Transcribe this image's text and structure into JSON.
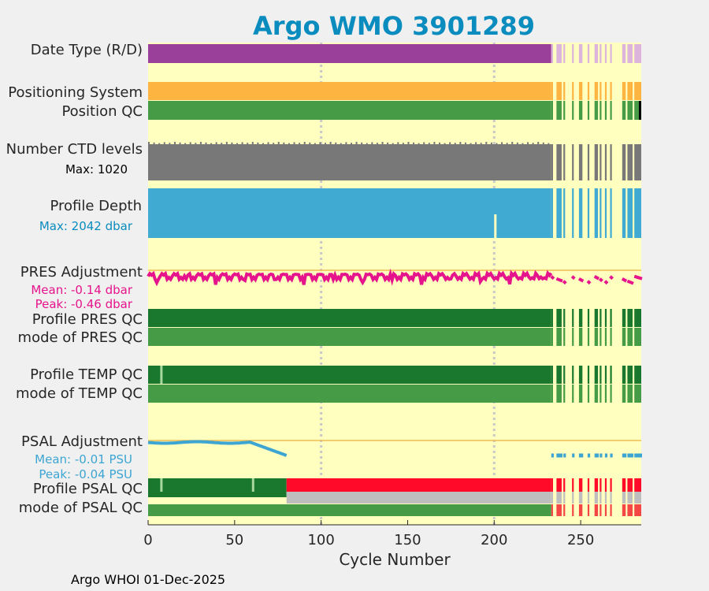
{
  "chart_data": {
    "type": "bar",
    "title": "Argo WMO 3901289",
    "xlabel": "Cycle Number",
    "xlim": [
      0,
      285
    ],
    "xticks": [
      0,
      50,
      100,
      150,
      200,
      250
    ],
    "xtick_labels": [
      "0",
      "50",
      "100",
      "150",
      "200",
      "250"
    ],
    "footer": "Argo WHOI 01-Dec-2025",
    "rows": {
      "date_type": "Date Type (R/D)",
      "positioning": "Positioning System",
      "position_qc": "Position QC",
      "ctd_levels": "Number CTD levels",
      "ctd_max": "Max: 1020",
      "profile_depth": "Profile Depth",
      "depth_max": "Max: 2042 dbar",
      "pres_adj": "PRES Adjustment",
      "pres_mean": "Mean: -0.14 dbar",
      "pres_peak": "Peak: -0.46 dbar",
      "profile_pres_qc": "Profile PRES QC",
      "mode_pres_qc": "mode of PRES QC",
      "profile_temp_qc": "Profile TEMP QC",
      "mode_temp_qc": "mode of TEMP QC",
      "psal_adj": "PSAL Adjustment",
      "psal_mean": "Mean: -0.01 PSU",
      "psal_peak": "Peak: -0.04 PSU",
      "profile_psal_qc": "Profile PSAL QC",
      "mode_psal_qc": "mode of PSAL QC"
    },
    "cycles_present_after_233": [
      [
        233,
        234
      ],
      [
        236,
        239
      ],
      [
        240,
        241
      ],
      [
        245,
        246
      ],
      [
        249,
        251
      ],
      [
        254,
        255
      ],
      [
        258,
        260
      ],
      [
        261,
        262
      ],
      [
        264,
        265
      ],
      [
        267,
        268
      ],
      [
        274,
        276
      ],
      [
        277,
        280
      ],
      [
        281,
        285
      ]
    ],
    "data_type_realtime_from_cycle": 233,
    "psal_qc_bad_from_cycle": 80,
    "ctd_levels_max": 1020,
    "profile_depth_max_dbar": 2042,
    "pres_adjustment_mean_dbar": -0.14,
    "pres_adjustment_peak_dbar": -0.46,
    "psal_adjustment_mean_psu": -0.01,
    "psal_adjustment_peak_psu": -0.04,
    "colors": {
      "background": "#ffffc0",
      "delayed": "#9a3f9a",
      "realtime": "#dcb4dc",
      "positioning": "#fdb441",
      "qc_good_dark": "#19782d",
      "qc_good": "#469b46",
      "qc_bad": "#ff0a28",
      "qc_bad_light": "#f54646",
      "missing_gray": "#bebebe",
      "ctd": "#787878",
      "depth": "#41aad2",
      "pres": "#e6148c",
      "psal": "#3ca5d2",
      "zero_line": "#f0be50",
      "title": "#0a8cbe"
    }
  }
}
